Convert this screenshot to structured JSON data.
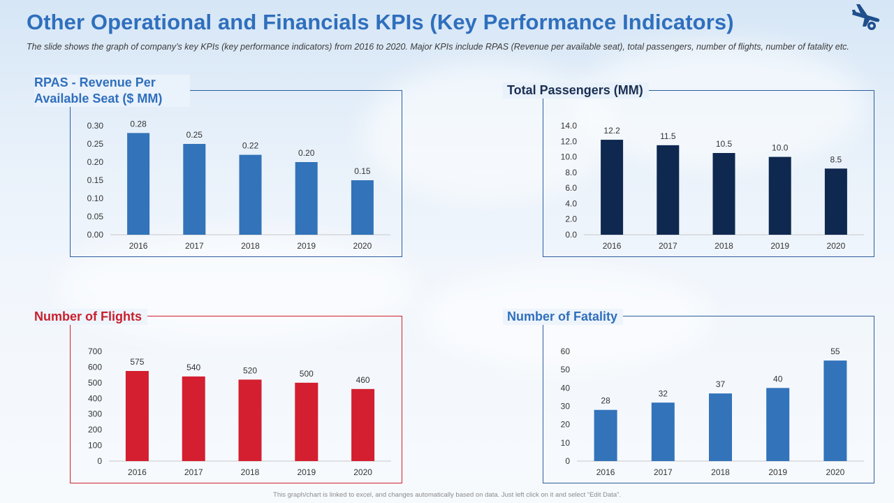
{
  "title": "Other Operational and Financials KPIs (Key Performance Indicators)",
  "subtitle": "The slide shows the graph of company’s key KPIs (key performance indicators) from 2016 to 2020. Major KPIs include RPAS (Revenue per available seat), total passengers, number of flights, number of fatality etc.",
  "footer": "This graph/chart is linked to excel, and changes automatically based on data. Just left click on it and select “Edit Data”.",
  "icons": {
    "logo": "airplane-icon"
  },
  "colors": {
    "title": "#2f6fbd",
    "rpas": "#3273ba",
    "passengers": "#0f2850",
    "flights": "#d31f2f",
    "fatality": "#3273ba",
    "frame_blue": "#2c5d9c",
    "frame_red": "#d31f2f"
  },
  "chart_data": [
    {
      "type": "bar",
      "title": "RPAS - Revenue Per Available Seat ($ MM)",
      "categories": [
        "2016",
        "2017",
        "2018",
        "2019",
        "2020"
      ],
      "values": [
        0.28,
        0.25,
        0.22,
        0.2,
        0.15
      ],
      "value_labels": [
        "0.28",
        "0.25",
        "0.22",
        "0.20",
        "0.15"
      ],
      "yticks": [
        "0.00",
        "0.05",
        "0.10",
        "0.15",
        "0.20",
        "0.25",
        "0.30"
      ],
      "ylim": [
        0,
        0.3
      ],
      "grid": false
    },
    {
      "type": "bar",
      "title": "Total Passengers (MM)",
      "categories": [
        "2016",
        "2017",
        "2018",
        "2019",
        "2020"
      ],
      "values": [
        12.2,
        11.5,
        10.5,
        10.0,
        8.5
      ],
      "value_labels": [
        "12.2",
        "11.5",
        "10.5",
        "10.0",
        "8.5"
      ],
      "yticks": [
        "0.0",
        "2.0",
        "4.0",
        "6.0",
        "8.0",
        "10.0",
        "12.0",
        "14.0"
      ],
      "ylim": [
        0,
        14
      ],
      "grid": false
    },
    {
      "type": "bar",
      "title": "Number of Flights",
      "categories": [
        "2016",
        "2017",
        "2018",
        "2019",
        "2020"
      ],
      "values": [
        575,
        540,
        520,
        500,
        460
      ],
      "value_labels": [
        "575",
        "540",
        "520",
        "500",
        "460"
      ],
      "yticks": [
        "0",
        "100",
        "200",
        "300",
        "400",
        "500",
        "600",
        "700"
      ],
      "ylim": [
        0,
        700
      ],
      "grid": false
    },
    {
      "type": "bar",
      "title": "Number of Fatality",
      "categories": [
        "2016",
        "2017",
        "2018",
        "2019",
        "2020"
      ],
      "values": [
        28,
        32,
        37,
        40,
        55
      ],
      "value_labels": [
        "28",
        "32",
        "37",
        "40",
        "55"
      ],
      "yticks": [
        "0",
        "10",
        "20",
        "30",
        "40",
        "50",
        "60"
      ],
      "ylim": [
        0,
        60
      ],
      "grid": false
    }
  ]
}
